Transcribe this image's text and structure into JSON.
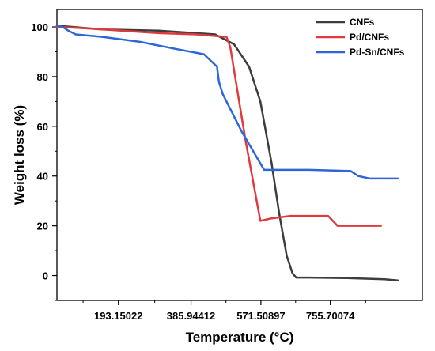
{
  "chart_data": {
    "type": "line",
    "xlabel": "Temperature (°C)",
    "ylabel": "Weight loss (%)",
    "xlim": [
      30,
      1000
    ],
    "ylim": [
      -10,
      107
    ],
    "x_ticks": [
      "193.15022",
      "385.94412",
      "571.50897",
      "755.70074"
    ],
    "x_tick_values": [
      193.15022,
      385.94412,
      571.50897,
      755.70074
    ],
    "y_ticks": [
      0,
      20,
      40,
      60,
      80,
      100
    ],
    "legend_position": "top-right",
    "series": [
      {
        "name": "CNFs",
        "color": "#3d3d3d",
        "x": [
          30,
          150,
          300,
          450,
          500,
          540,
          570,
          600,
          620,
          640,
          655,
          665,
          680,
          700,
          800,
          900,
          935
        ],
        "y": [
          100.5,
          99,
          98.5,
          97,
          93,
          84,
          70,
          45,
          25,
          8,
          1,
          -0.8,
          -0.8,
          -0.8,
          -1,
          -1.5,
          -2
        ]
      },
      {
        "name": "Pd/CNFs",
        "color": "#e0393e",
        "x": [
          30,
          100,
          200,
          300,
          400,
          480,
          490,
          530,
          570,
          600,
          650,
          700,
          750,
          775,
          790,
          850,
          890
        ],
        "y": [
          100,
          99.5,
          98.5,
          97.5,
          97,
          96,
          92,
          55,
          22,
          23,
          24,
          24,
          24,
          20,
          20,
          20,
          20
        ]
      },
      {
        "name": "Pd-Sn/CNFs",
        "color": "#2e66d8",
        "x": [
          30,
          45,
          60,
          80,
          150,
          250,
          350,
          420,
          455,
          460,
          470,
          520,
          580,
          620,
          700,
          810,
          830,
          860,
          935
        ],
        "y": [
          100.5,
          100,
          98.5,
          97,
          96,
          94,
          91,
          89,
          84,
          78,
          73,
          58,
          42.5,
          42.5,
          42.5,
          42,
          40,
          39,
          39
        ]
      }
    ]
  }
}
